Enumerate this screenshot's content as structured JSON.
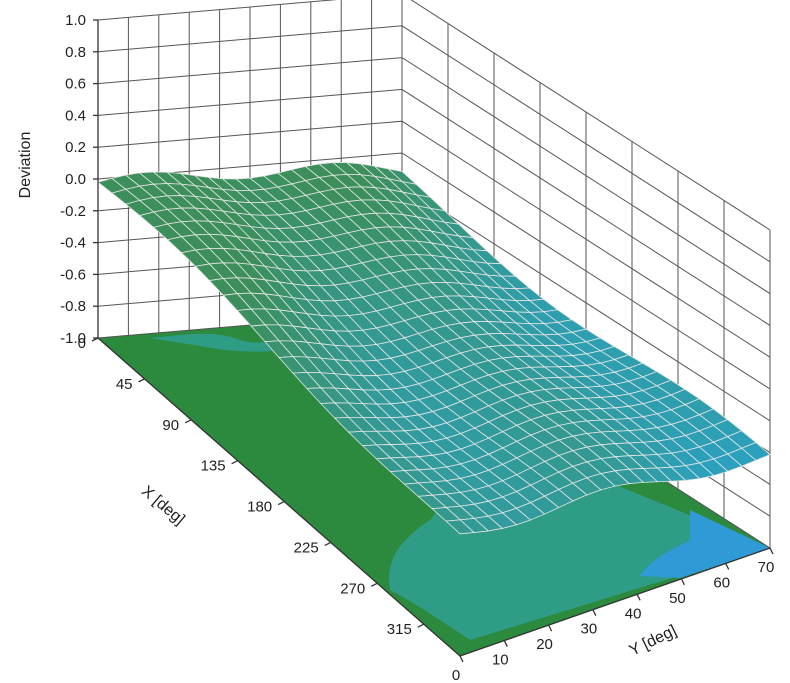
{
  "chart_data": {
    "type": "surface",
    "z_axis": {
      "label": "Deviation",
      "ticks": [
        "1.0",
        "0.8",
        "0.6",
        "0.4",
        "0.2",
        "0.0",
        "-0.2",
        "-0.4",
        "-0.6",
        "-0.8",
        "-1.0"
      ],
      "range": [
        -1.0,
        1.0
      ]
    },
    "x_axis": {
      "label": "X [deg]",
      "ticks": [
        "0",
        "45",
        "90",
        "135",
        "180",
        "225",
        "270",
        "315"
      ],
      "range": [
        0,
        350
      ]
    },
    "y_axis": {
      "label": "Y [deg]",
      "ticks": [
        "0",
        "10",
        "20",
        "30",
        "40",
        "50",
        "60",
        "70"
      ],
      "range": [
        0,
        70
      ]
    },
    "grid": true,
    "surface_z_range": [
      -0.45,
      0.0
    ],
    "colors": {
      "surface_high": "#3c8f5a",
      "surface_low": "#2aa3c8",
      "mesh": "#e6e6e6",
      "floor_green": "#2b8a3e",
      "floor_teal": "#2f9c86",
      "floor_blue": "#2f9ad6"
    }
  }
}
